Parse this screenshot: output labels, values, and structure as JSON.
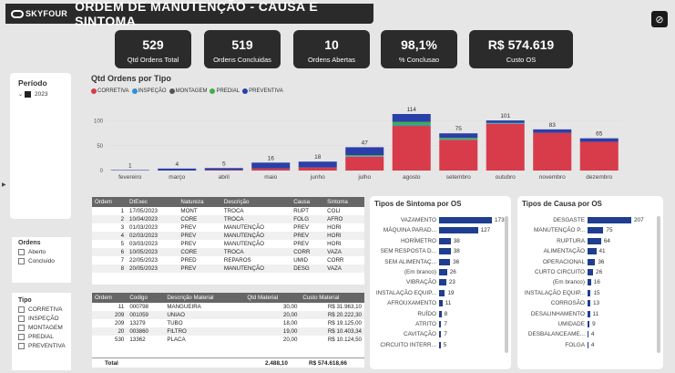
{
  "header": {
    "brand": "SKYFOUR",
    "title": "ORDEM DE MANUTENÇÃO - CAUSA E SINTOMA"
  },
  "kpis": [
    {
      "value": "529",
      "label": "Qtd Ordens Total"
    },
    {
      "value": "519",
      "label": "Ordens Concluidas"
    },
    {
      "value": "10",
      "label": "Ordens Abertas"
    },
    {
      "value": "98,1%",
      "label": "% Conclusao"
    },
    {
      "value": "R$ 574.619",
      "label": "Custo OS"
    }
  ],
  "filters": {
    "periodo": {
      "title": "Período",
      "year": "2023"
    },
    "ordens": {
      "title": "Ordens",
      "items": [
        "Aberto",
        "Concluido"
      ]
    },
    "tipo": {
      "title": "Tipo",
      "items": [
        "CORRETIVA",
        "INSPEÇÃO",
        "MONTAGEM",
        "PREDIAL",
        "PREVENTIVA"
      ]
    }
  },
  "colors": {
    "corretiva": "#d83b4a",
    "inspecao": "#2f8fd8",
    "montagem": "#555555",
    "predial": "#3fae49",
    "preventiva": "#2b3fa8"
  },
  "chart_data": [
    {
      "type": "bar",
      "title": "Qtd Ordens por Tipo",
      "stacked": true,
      "legend_position": "top-left",
      "categories": [
        "fevereiro",
        "março",
        "abril",
        "maio",
        "junho",
        "julho",
        "agosto",
        "setembro",
        "outubro",
        "novembro",
        "dezembro"
      ],
      "totals": [
        1,
        4,
        5,
        16,
        18,
        47,
        114,
        75,
        101,
        83,
        65
      ],
      "series": [
        {
          "name": "CORRETIVA",
          "values": [
            0,
            0,
            1,
            4,
            6,
            28,
            90,
            62,
            94,
            76,
            58
          ]
        },
        {
          "name": "INSPEÇÃO",
          "values": [
            0,
            0,
            0,
            0,
            0,
            1,
            2,
            1,
            1,
            0,
            0
          ]
        },
        {
          "name": "MONTAGEM",
          "values": [
            0,
            0,
            0,
            0,
            0,
            0,
            0,
            0,
            0,
            0,
            0
          ]
        },
        {
          "name": "PREDIAL",
          "values": [
            0,
            0,
            0,
            0,
            0,
            2,
            6,
            3,
            1,
            0,
            0
          ]
        },
        {
          "name": "PREVENTIVA",
          "values": [
            1,
            4,
            4,
            12,
            12,
            16,
            16,
            9,
            5,
            7,
            7
          ]
        }
      ]
    },
    {
      "type": "bar",
      "orientation": "horizontal",
      "title": "Tipos de Sintoma por OS",
      "categories": [
        "VAZAMENTO",
        "MÁQUINA PARAD...",
        "HORÍMETRO",
        "SEM RESPOSTA D...",
        "SEM ALIMENTAÇ...",
        "(Em branco)",
        "VIBRAÇÃO",
        "INSTALAÇÃO EQUIP...",
        "AFROUXAMENTO",
        "RUÍDO",
        "ATRITO",
        "CAVITAÇÃO",
        "CIRCUITO INTERR..."
      ],
      "values": [
        173,
        127,
        38,
        38,
        36,
        26,
        23,
        19,
        11,
        8,
        7,
        7,
        5
      ]
    },
    {
      "type": "bar",
      "orientation": "horizontal",
      "title": "Tipos de Causa por OS",
      "categories": [
        "DESGASTE",
        "MANUTENÇÃO P...",
        "RUPTURA",
        "ALIMENTAÇÃO",
        "OPERACIONAL",
        "CURTO CIRCUITO",
        "(Em branco)",
        "INSTALAÇÃO EQUIP...",
        "CORROSÃO",
        "DESALINHAMENTO",
        "UMIDADE",
        "DESBALANCEAME...",
        "FOLGA"
      ],
      "values": [
        207,
        75,
        64,
        41,
        36,
        26,
        16,
        15,
        13,
        11,
        9,
        4,
        4
      ]
    }
  ],
  "orders_table": {
    "headers": [
      "Ordem",
      "DtExec",
      "Natureza",
      "Descrição",
      "Causa",
      "Sintoma"
    ],
    "rows": [
      [
        "1",
        "17/05/2023",
        "MONT",
        "TROCA",
        "RUPT",
        "COLI"
      ],
      [
        "2",
        "10/04/2023",
        "CORE",
        "TROCA",
        "FOLG",
        "AFRO"
      ],
      [
        "3",
        "01/03/2023",
        "PREV",
        "MANUTENÇÃO",
        "PREV",
        "HORI"
      ],
      [
        "4",
        "02/03/2023",
        "PREV",
        "MANUTENÇÃO",
        "PREV",
        "HORI"
      ],
      [
        "5",
        "03/03/2023",
        "PREV",
        "MANUTENÇÃO",
        "PREV",
        "HORI"
      ],
      [
        "6",
        "10/05/2023",
        "CORE",
        "TROCA",
        "CORR",
        "VAZA"
      ],
      [
        "7",
        "22/05/2023",
        "PRED",
        "REPAROS",
        "UMID",
        "CORR"
      ],
      [
        "8",
        "20/05/2023",
        "PREV",
        "MANUTENÇÃO",
        "DESG",
        "VAZA"
      ]
    ]
  },
  "materials_table": {
    "headers": [
      "Ordem",
      "Codigo",
      "Descrição Material",
      "Qtd Material",
      "Custo Material"
    ],
    "rows": [
      [
        "11",
        "000798",
        "MANGUEIRA",
        "30,00",
        "R$ 31.963,10"
      ],
      [
        "209",
        "001059",
        "UNIAO",
        "20,00",
        "R$ 20.222,30"
      ],
      [
        "209",
        "13279",
        "TUBO",
        "18,00",
        "R$ 19.125,00"
      ],
      [
        "20",
        "003860",
        "FILTRO",
        "19,00",
        "R$ 10.403,34"
      ],
      [
        "530",
        "13362",
        "PLACA",
        "20,00",
        "R$ 10.124,50"
      ]
    ],
    "total": {
      "label": "Total",
      "qty": "2.488,10",
      "cost": "R$ 574.618,66"
    }
  }
}
